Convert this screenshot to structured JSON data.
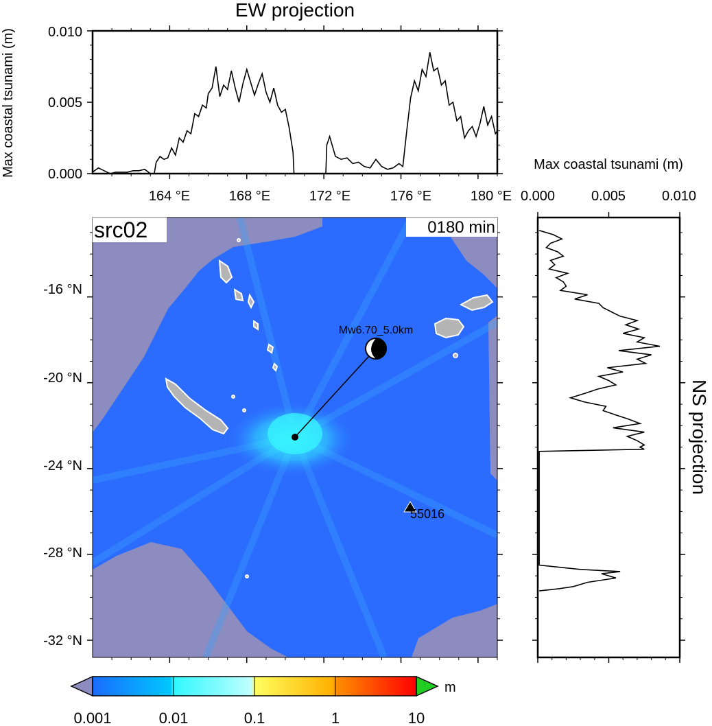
{
  "ew_panel": {
    "title": "EW projection",
    "ylabel": "Max coastal tsunami (m)",
    "y_ticks": [
      "0.000",
      "0.005",
      "0.010"
    ],
    "x_ticks": [
      "164 °E",
      "168 °E",
      "172 °E",
      "176 °E",
      "180 °E"
    ]
  },
  "ns_panel": {
    "title": "NS projection",
    "xlabel": "Max coastal tsunami (m)",
    "x_ticks": [
      "0.000",
      "0.005",
      "0.010"
    ]
  },
  "map": {
    "source_label": "src02",
    "time_label": "0180 min",
    "lat_ticks": [
      "-16 °N",
      "-20 °N",
      "-24 °N",
      "-28 °N",
      "-32 °N"
    ],
    "event_label": "Mw6.70_5.0km",
    "station_label": "55016",
    "colors": {
      "land_mask": "#8c8cc0",
      "ocean_low": "#2b6cff",
      "ocean_mid": "#2ff0ff",
      "island": "#b4b4b4",
      "coast": "#ffffff"
    }
  },
  "colorbar": {
    "unit": "m",
    "tick_labels": [
      "0.001",
      "0.01",
      "0.1",
      "1",
      "10"
    ],
    "colors": [
      "#1a6cff",
      "#00c8ff",
      "#40ffff",
      "#ffff40",
      "#ff9000",
      "#ff0000"
    ],
    "under_color": "#8c8cc0",
    "over_color": "#22cc22"
  },
  "chart_data": [
    {
      "type": "line",
      "title": "EW projection",
      "xlabel": "",
      "ylabel": "Max coastal tsunami (m)",
      "xlim": [
        160.0,
        181.0
      ],
      "ylim": [
        0.0,
        0.01
      ],
      "x": [
        160.0,
        160.3,
        160.6,
        160.9,
        161.2,
        161.5,
        161.8,
        162.1,
        162.4,
        162.7,
        163.0,
        163.2,
        163.3,
        163.5,
        163.7,
        163.9,
        164.1,
        164.3,
        164.5,
        164.7,
        164.9,
        165.1,
        165.3,
        165.5,
        165.7,
        165.9,
        166.0,
        166.2,
        166.4,
        166.6,
        166.8,
        167.0,
        167.2,
        167.4,
        167.6,
        167.8,
        168.0,
        168.2,
        168.4,
        168.6,
        168.8,
        169.0,
        169.2,
        169.4,
        169.6,
        169.8,
        170.0,
        170.2,
        170.4,
        170.45,
        172.1,
        172.15,
        172.3,
        172.6,
        172.9,
        173.2,
        173.5,
        173.8,
        174.1,
        174.4,
        174.7,
        175.0,
        175.3,
        175.6,
        175.9,
        176.1,
        176.3,
        176.5,
        176.7,
        176.9,
        177.1,
        177.3,
        177.5,
        177.7,
        177.9,
        178.1,
        178.3,
        178.5,
        178.7,
        178.9,
        179.1,
        179.3,
        179.5,
        179.7,
        179.9,
        180.1,
        180.3,
        180.5,
        180.7,
        180.9,
        181.0
      ],
      "y": [
        0.0001,
        0.0004,
        0.0002,
        0.0,
        0.0001,
        0.0001,
        0.0001,
        0.0002,
        0.0002,
        0.0003,
        0.0,
        0.0,
        0.0008,
        0.0012,
        0.001,
        0.0011,
        0.0018,
        0.0013,
        0.0025,
        0.0022,
        0.003,
        0.0028,
        0.0042,
        0.004,
        0.0048,
        0.0046,
        0.0056,
        0.006,
        0.0075,
        0.0054,
        0.0062,
        0.0059,
        0.0072,
        0.006,
        0.005,
        0.0063,
        0.0073,
        0.0064,
        0.0055,
        0.0063,
        0.007,
        0.0057,
        0.005,
        0.006,
        0.0048,
        0.0043,
        0.0045,
        0.0032,
        0.0015,
        0.0,
        0.0,
        0.002,
        0.0026,
        0.0012,
        0.001,
        0.0011,
        0.0007,
        0.0008,
        0.0005,
        0.0004,
        0.001,
        0.0005,
        0.0003,
        0.0004,
        0.0007,
        0.0005,
        0.003,
        0.0053,
        0.0065,
        0.0058,
        0.0073,
        0.0068,
        0.0085,
        0.0072,
        0.0074,
        0.0062,
        0.0065,
        0.0048,
        0.005,
        0.0037,
        0.004,
        0.0025,
        0.003,
        0.0033,
        0.0026,
        0.0035,
        0.0047,
        0.0034,
        0.004,
        0.0028,
        0.003
      ]
    },
    {
      "type": "line",
      "title": "NS projection",
      "xlabel": "Max coastal tsunami (m)",
      "ylabel": "",
      "xlim": [
        0.0,
        0.01
      ],
      "ylim": [
        -32.8,
        -12.3
      ],
      "y": [
        -12.9,
        -13.1,
        -13.3,
        -13.5,
        -13.7,
        -13.9,
        -14.1,
        -14.3,
        -14.5,
        -14.7,
        -14.9,
        -15.1,
        -15.3,
        -15.5,
        -15.7,
        -15.9,
        -16.1,
        -16.3,
        -16.5,
        -16.7,
        -16.9,
        -17.1,
        -17.3,
        -17.5,
        -17.7,
        -17.9,
        -18.1,
        -18.3,
        -18.5,
        -18.7,
        -18.9,
        -19.1,
        -19.3,
        -19.5,
        -19.7,
        -19.9,
        -20.1,
        -20.3,
        -20.5,
        -20.7,
        -20.9,
        -21.1,
        -21.3,
        -21.5,
        -21.7,
        -21.9,
        -22.1,
        -22.3,
        -22.5,
        -22.7,
        -22.9,
        -23.0,
        -23.1,
        -23.2,
        -28.5,
        -28.7,
        -28.8,
        -28.9,
        -29.1,
        -29.3,
        -29.5,
        -29.6,
        -29.7
      ],
      "x": [
        0.0001,
        0.0011,
        0.0017,
        0.0009,
        0.0006,
        0.0014,
        0.0018,
        0.0009,
        0.0012,
        0.0008,
        0.0021,
        0.0013,
        0.0018,
        0.002,
        0.0016,
        0.0035,
        0.0026,
        0.0043,
        0.0046,
        0.0052,
        0.0058,
        0.007,
        0.0062,
        0.0071,
        0.006,
        0.0075,
        0.007,
        0.0086,
        0.0057,
        0.008,
        0.007,
        0.0076,
        0.0049,
        0.006,
        0.0043,
        0.005,
        0.0055,
        0.0042,
        0.0033,
        0.0023,
        0.0033,
        0.0048,
        0.0046,
        0.0055,
        0.0064,
        0.0072,
        0.0053,
        0.0075,
        0.0063,
        0.007,
        0.0075,
        0.0072,
        0.0075,
        0.0001,
        0.0001,
        0.003,
        0.0058,
        0.0045,
        0.0055,
        0.0035,
        0.0025,
        0.0015,
        0.0001
      ]
    }
  ]
}
